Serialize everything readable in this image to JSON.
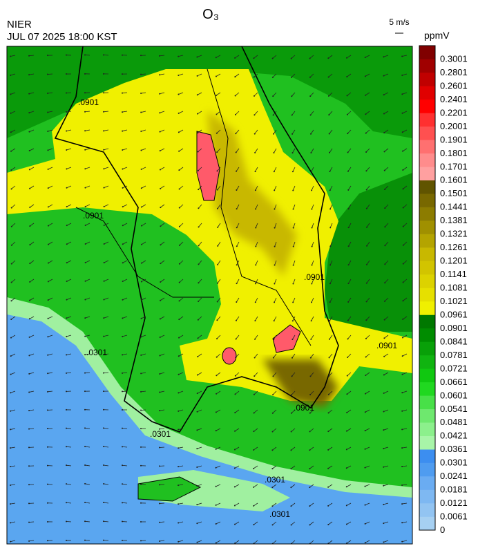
{
  "header": {
    "title": "O₃",
    "source": "NIER",
    "timestamp": "JUL 07 2025 18:00 KST",
    "wind_scale": "5 m/s"
  },
  "map": {
    "contour_labels": [
      ".0901",
      ".0901",
      ".0901",
      ".0901",
      ".0901",
      ".0301",
      ".0301",
      ".0301",
      ".0301"
    ],
    "colorbar": {
      "label": "ppmV",
      "levels": [
        0,
        0.0061,
        0.0121,
        0.0181,
        0.0241,
        0.0301,
        0.0361,
        0.0421,
        0.0481,
        0.0541,
        0.0601,
        0.0661,
        0.0721,
        0.0781,
        0.0841,
        0.0901,
        0.0961,
        0.1021,
        0.1081,
        0.1141,
        0.1201,
        0.1261,
        0.1321,
        0.1381,
        0.1441,
        0.1501,
        0.1601,
        0.1701,
        0.1801,
        0.1901,
        0.2001,
        0.2201,
        0.2401,
        0.2601,
        0.2801,
        0.3001
      ],
      "colors": [
        "#a6d0f2",
        "#92c4f2",
        "#7eb8f2",
        "#6aacf2",
        "#4f9cf0",
        "#3c8ef0",
        "#a8f5a8",
        "#8cf08c",
        "#6ee86e",
        "#48e048",
        "#20d820",
        "#10c810",
        "#10b410",
        "#08a008",
        "#008c00",
        "#007800",
        "#f0f000",
        "#e6e000",
        "#dcd200",
        "#d2c400",
        "#c8b800",
        "#b4a400",
        "#a09000",
        "#8c7c00",
        "#786800",
        "#605400",
        "#ffa0a0",
        "#ff8c8c",
        "#ff7070",
        "#ff5050",
        "#ff3030",
        "#ff0000",
        "#e00000",
        "#c00000",
        "#a00000",
        "#800000"
      ]
    }
  }
}
